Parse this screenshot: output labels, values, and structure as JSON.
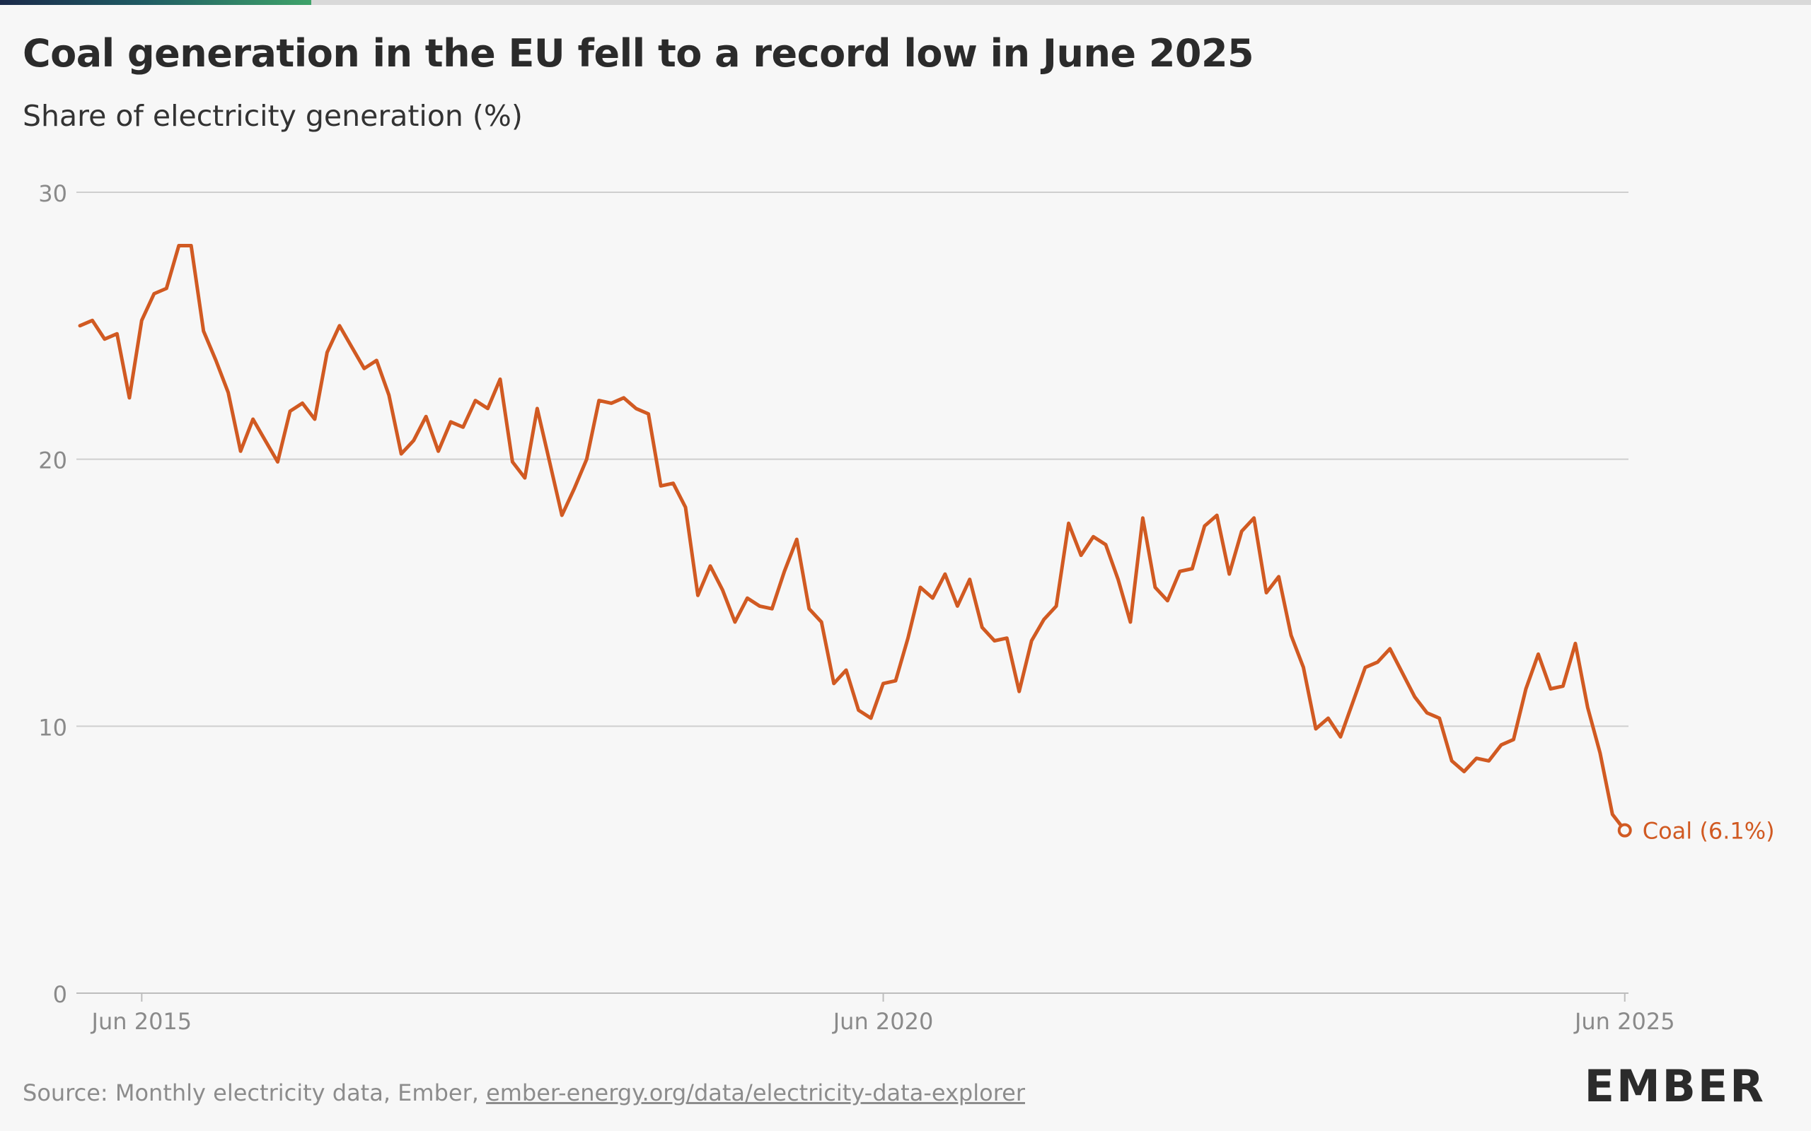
{
  "header": {
    "title": "Coal generation in the EU fell to a record low in June 2025",
    "subtitle": "Share of electricity generation (%)"
  },
  "footer": {
    "source_prefix": "Source: Monthly electricity data, Ember,",
    "source_link": "ember-energy.org/data/electricity-data-explorer",
    "brand": "EMBER"
  },
  "colors": {
    "series": "#d15a22",
    "grid": "#cfcfcf",
    "tick_text": "#8a8a8a",
    "background": "#f7f7f7"
  },
  "chart_data": {
    "type": "line",
    "title": "Coal generation in the EU fell to a record low in June 2025",
    "subtitle": "Share of electricity generation (%)",
    "xlabel": "",
    "ylabel": "",
    "x_range": [
      "2015-01",
      "2025-06"
    ],
    "ylim": [
      0,
      30
    ],
    "yticks": [
      "0",
      "10",
      "20",
      "30"
    ],
    "xticks": [
      {
        "x": "2015-06",
        "label": "Jun 2015"
      },
      {
        "x": "2020-06",
        "label": "Jun 2020"
      },
      {
        "x": "2025-06",
        "label": "Jun 2025"
      }
    ],
    "grid": true,
    "end_label": "Coal (6.1%)",
    "series": [
      {
        "name": "Coal",
        "color": "#d15a22",
        "x": [
          "2015-01",
          "2015-02",
          "2015-03",
          "2015-04",
          "2015-05",
          "2015-06",
          "2015-07",
          "2015-08",
          "2015-09",
          "2015-10",
          "2015-11",
          "2015-12",
          "2016-01",
          "2016-02",
          "2016-03",
          "2016-04",
          "2016-05",
          "2016-06",
          "2016-07",
          "2016-08",
          "2016-09",
          "2016-10",
          "2016-11",
          "2016-12",
          "2017-01",
          "2017-02",
          "2017-03",
          "2017-04",
          "2017-05",
          "2017-06",
          "2017-07",
          "2017-08",
          "2017-09",
          "2017-10",
          "2017-11",
          "2017-12",
          "2018-01",
          "2018-02",
          "2018-03",
          "2018-04",
          "2018-05",
          "2018-06",
          "2018-07",
          "2018-08",
          "2018-09",
          "2018-10",
          "2018-11",
          "2018-12",
          "2019-01",
          "2019-02",
          "2019-03",
          "2019-04",
          "2019-05",
          "2019-06",
          "2019-07",
          "2019-08",
          "2019-09",
          "2019-10",
          "2019-11",
          "2019-12",
          "2020-01",
          "2020-02",
          "2020-03",
          "2020-04",
          "2020-05",
          "2020-06",
          "2020-07",
          "2020-08",
          "2020-09",
          "2020-10",
          "2020-11",
          "2020-12",
          "2021-01",
          "2021-02",
          "2021-03",
          "2021-04",
          "2021-05",
          "2021-06",
          "2021-07",
          "2021-08",
          "2021-09",
          "2021-10",
          "2021-11",
          "2021-12",
          "2022-01",
          "2022-02",
          "2022-03",
          "2022-04",
          "2022-05",
          "2022-06",
          "2022-07",
          "2022-08",
          "2022-09",
          "2022-10",
          "2022-11",
          "2022-12",
          "2023-01",
          "2023-02",
          "2023-03",
          "2023-04",
          "2023-05",
          "2023-06",
          "2023-07",
          "2023-08",
          "2023-09",
          "2023-10",
          "2023-11",
          "2023-12",
          "2024-01",
          "2024-02",
          "2024-03",
          "2024-04",
          "2024-05",
          "2024-06",
          "2024-07",
          "2024-08",
          "2024-09",
          "2024-10",
          "2024-11",
          "2024-12",
          "2025-01",
          "2025-02",
          "2025-03",
          "2025-04",
          "2025-05",
          "2025-06"
        ],
        "values": [
          25.0,
          25.2,
          24.5,
          24.7,
          22.3,
          25.2,
          26.2,
          26.4,
          28.0,
          28.0,
          24.8,
          23.7,
          22.5,
          20.3,
          21.5,
          20.7,
          19.9,
          21.8,
          22.1,
          21.5,
          24.0,
          25.0,
          24.2,
          23.4,
          23.7,
          22.4,
          20.2,
          20.7,
          21.6,
          20.3,
          21.4,
          21.2,
          22.2,
          21.9,
          23.0,
          19.9,
          19.3,
          21.9,
          19.9,
          17.9,
          18.9,
          20.0,
          22.2,
          22.1,
          22.3,
          21.9,
          21.7,
          19.0,
          19.1,
          18.2,
          14.9,
          16.0,
          15.1,
          13.9,
          14.8,
          14.5,
          14.4,
          15.8,
          17.0,
          14.4,
          13.9,
          11.6,
          12.1,
          10.6,
          10.3,
          11.6,
          11.7,
          13.3,
          15.2,
          14.8,
          15.7,
          14.5,
          15.5,
          13.7,
          13.2,
          13.3,
          11.3,
          13.2,
          14.0,
          14.5,
          17.6,
          16.4,
          17.1,
          16.8,
          15.5,
          13.9,
          17.8,
          15.2,
          14.7,
          15.8,
          15.9,
          17.5,
          17.9,
          15.7,
          17.3,
          17.8,
          15.0,
          15.6,
          13.4,
          12.2,
          9.9,
          10.3,
          9.6,
          10.9,
          12.2,
          12.4,
          12.9,
          12.0,
          11.1,
          10.5,
          10.3,
          8.7,
          8.3,
          8.8,
          8.7,
          9.3,
          9.5,
          11.4,
          12.7,
          11.4,
          11.5,
          13.1,
          10.7,
          9.0,
          6.7,
          6.1
        ]
      }
    ]
  }
}
